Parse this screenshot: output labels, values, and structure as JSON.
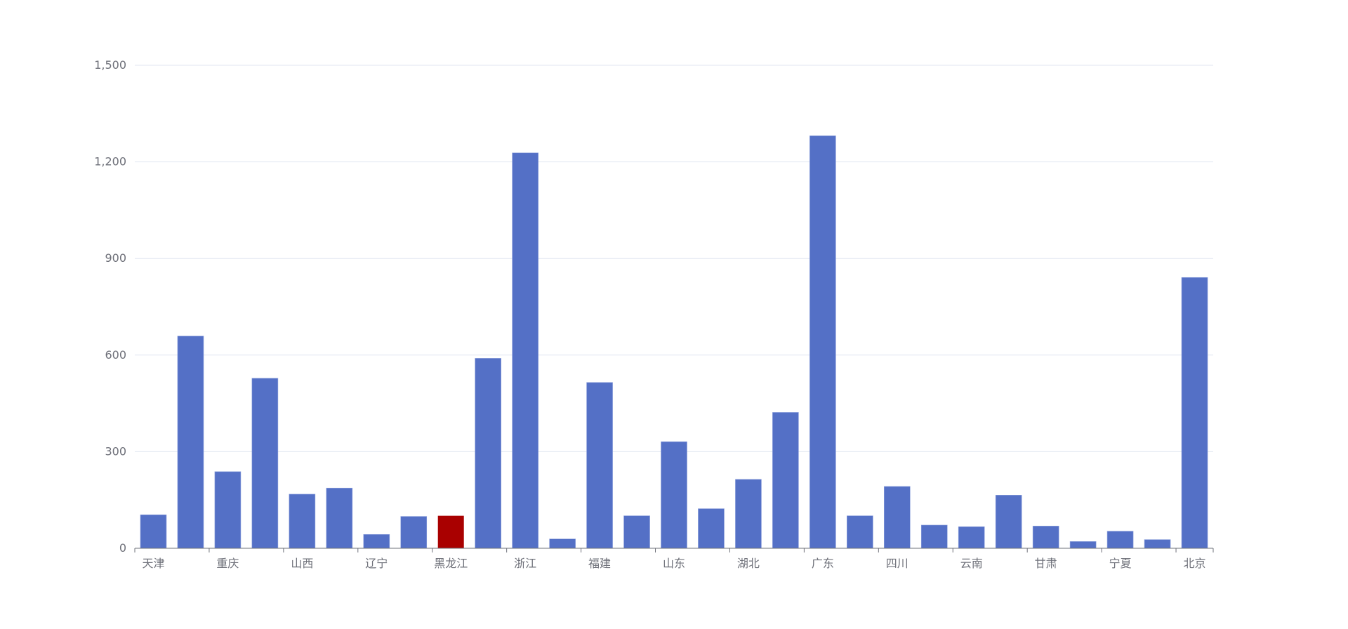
{
  "chart_data": {
    "type": "bar",
    "categories": [
      "天津",
      "",
      "重庆",
      "",
      "山西",
      "",
      "辽宁",
      "",
      "黑龙江",
      "",
      "浙江",
      "",
      "福建",
      "",
      "山东",
      "",
      "湖北",
      "",
      "广东",
      "",
      "四川",
      "",
      "云南",
      "",
      "甘肃",
      "",
      "宁夏",
      "",
      "北京"
    ],
    "values": [
      104,
      659,
      238,
      528,
      168,
      187,
      43,
      99,
      101,
      590,
      1228,
      29,
      515,
      101,
      331,
      123,
      214,
      422,
      1281,
      101,
      192,
      72,
      67,
      165,
      69,
      21,
      53,
      27,
      841
    ],
    "highlight_index": 8,
    "ylim": [
      0,
      1500
    ],
    "yticks": [
      0,
      300,
      600,
      900,
      1200,
      1500
    ],
    "ytick_labels": [
      "0",
      "300",
      "600",
      "900",
      "1,200",
      "1,500"
    ],
    "grid": true,
    "title": "",
    "xlabel": "",
    "ylabel": "",
    "colors": {
      "bar": "#5470c6",
      "highlight": "#a90000",
      "grid": "#e0e6f1",
      "axis": "#6e7079"
    }
  }
}
